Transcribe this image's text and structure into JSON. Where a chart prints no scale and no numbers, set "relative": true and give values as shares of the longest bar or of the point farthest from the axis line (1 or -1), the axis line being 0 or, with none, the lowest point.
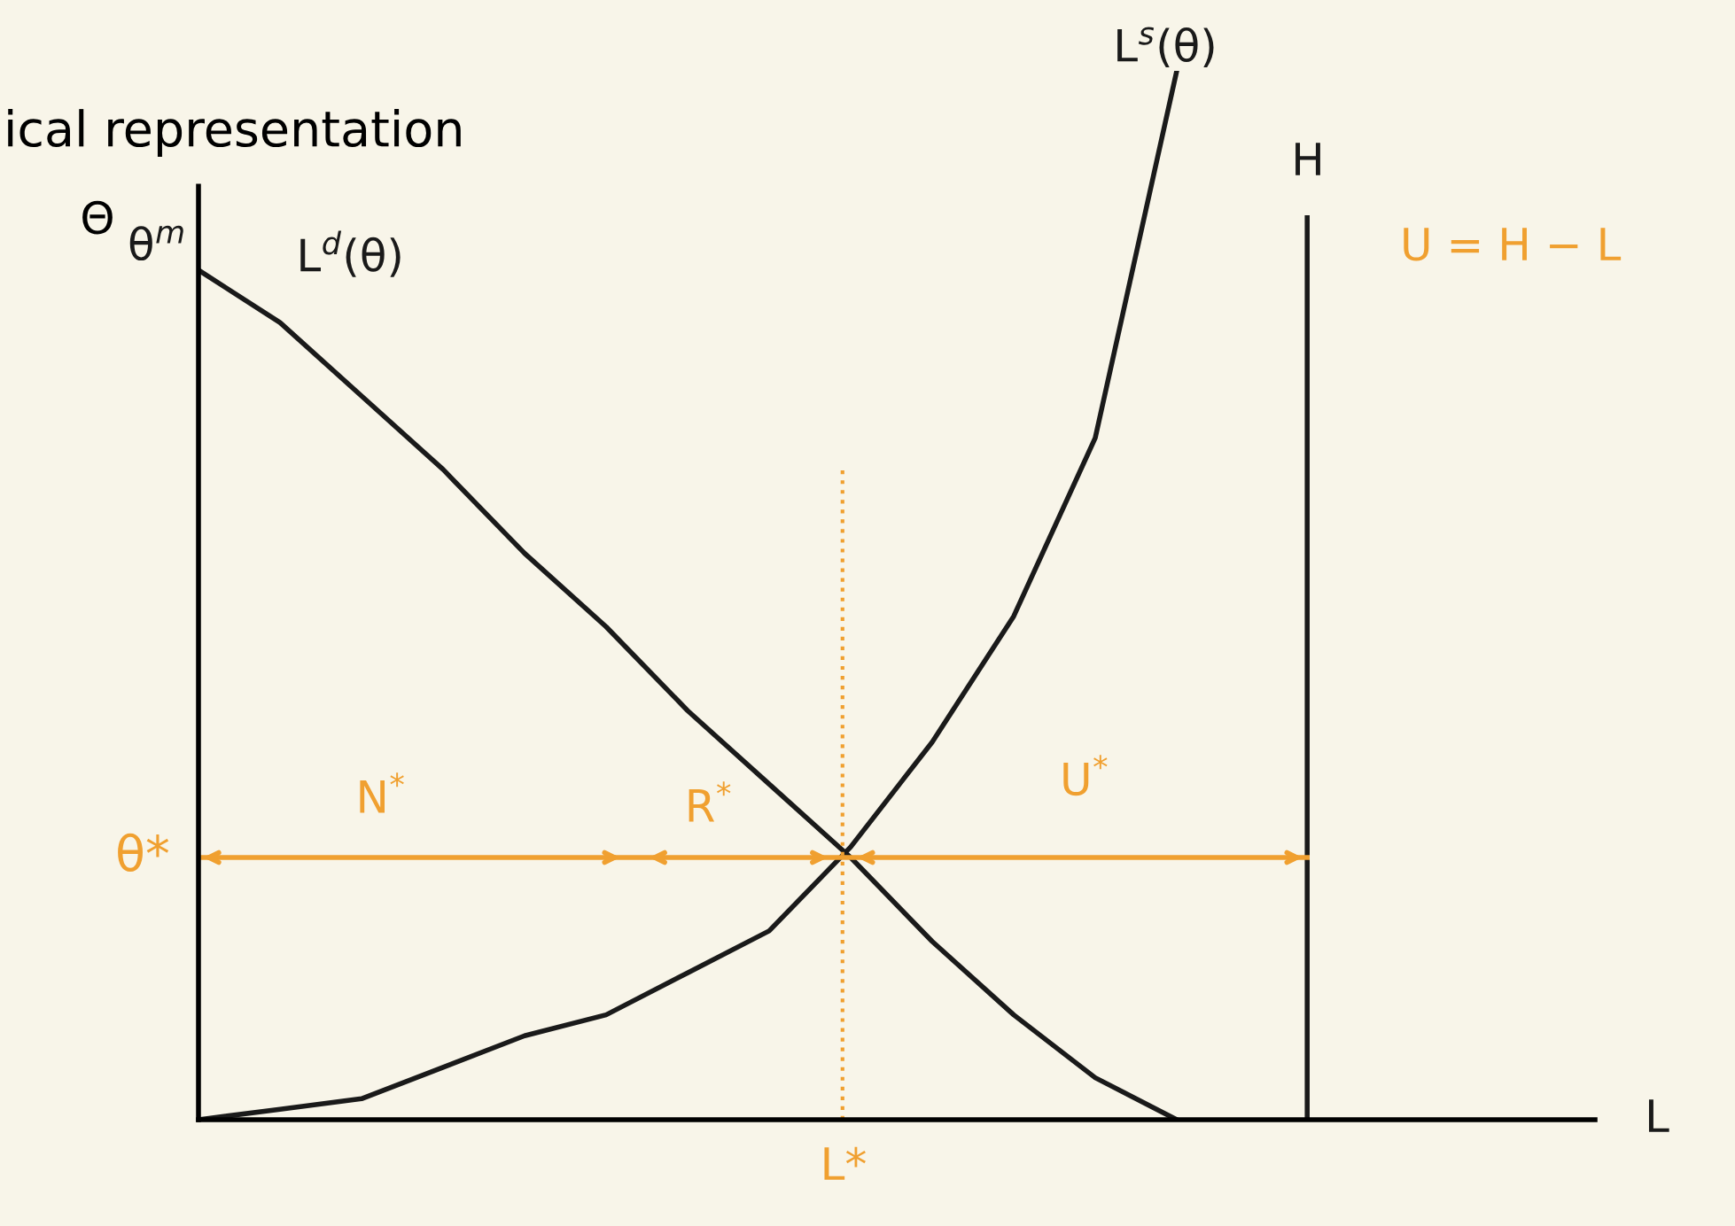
{
  "chart_data": {
    "type": "line",
    "relative": true,
    "title": "ical representation",
    "ylabel": "Θ",
    "categories": [
      null,
      null,
      null,
      null,
      null,
      null,
      null,
      null,
      null,
      null,
      null,
      null,
      null
    ],
    "series": [
      {
        "name": "L$^{d}$(θ)",
        "color": "#1a1a1a",
        "values": [
          0.81,
          0.76,
          0.69,
          0.62,
          0.54,
          0.47,
          0.39,
          0.32,
          0.25,
          0.17,
          0.1,
          0.04,
          0.0
        ]
      },
      {
        "name": "L$^{s}$(θ)",
        "color": "#1a1a1a",
        "values": [
          0.0,
          0.01,
          0.02,
          0.05,
          0.08,
          0.1,
          0.14,
          0.18,
          0.26,
          0.36,
          0.48,
          0.65,
          1.0
        ]
      }
    ],
    "ref_lines": [
      {
        "axis": "y",
        "value": 0.25,
        "label": "θ*",
        "color": "#f0a030",
        "line_style": "solid"
      }
    ],
    "annotations": [
      "θ$^{m}$",
      "N$^{*}$",
      "R$^{*}$",
      "U$^{*}$",
      "U = H − L",
      "H",
      "L*",
      "L"
    ],
    "legend": false,
    "marker": "none",
    "line_style": "solid"
  }
}
